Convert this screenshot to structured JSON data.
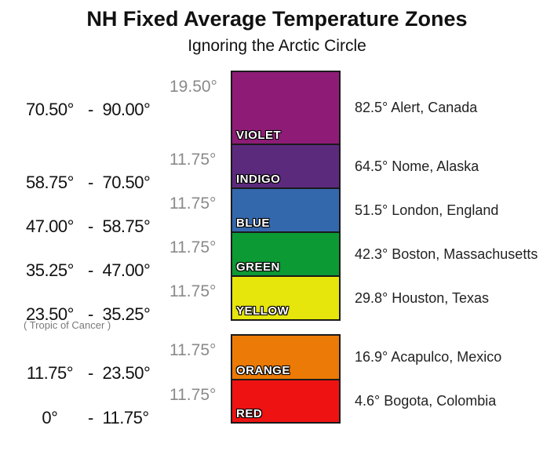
{
  "title": "NH Fixed Average Temperature Zones",
  "subtitle": "Ignoring the Arctic Circle",
  "tropic_label": "( Tropic of Cancer )",
  "zones": [
    {
      "range_from": "70.50°",
      "dash": "-",
      "range_to": "90.00°",
      "width": "19.50°",
      "color_name": "VIOLET",
      "color": "#8e1c77",
      "example": "82.5° Alert, Canada"
    },
    {
      "range_from": "58.75°",
      "dash": "-",
      "range_to": "70.50°",
      "width": "11.75°",
      "color_name": "INDIGO",
      "color": "#5c2a7d",
      "example": "64.5° Nome, Alaska"
    },
    {
      "range_from": "47.00°",
      "dash": "-",
      "range_to": "58.75°",
      "width": "11.75°",
      "color_name": "BLUE",
      "color": "#3468ad",
      "example": "51.5° London, England"
    },
    {
      "range_from": "35.25°",
      "dash": "-",
      "range_to": "47.00°",
      "width": "11.75°",
      "color_name": "GREEN",
      "color": "#0c9a35",
      "example": "42.3° Boston, Massachusetts"
    },
    {
      "range_from": "23.50°",
      "dash": "-",
      "range_to": "35.25°",
      "width": "11.75°",
      "color_name": "YELLOW",
      "color": "#e6e60c",
      "example": "29.8° Houston, Texas"
    },
    {
      "range_from": "11.75°",
      "dash": "-",
      "range_to": "23.50°",
      "width": "11.75°",
      "color_name": "ORANGE",
      "color": "#ec7a06",
      "example": "16.9° Acapulco, Mexico"
    },
    {
      "range_from": "0°",
      "dash": "-",
      "range_to": "11.75°",
      "width": "11.75°",
      "color_name": "RED",
      "color": "#ee1212",
      "example": "4.6° Bogota, Colombia"
    }
  ]
}
